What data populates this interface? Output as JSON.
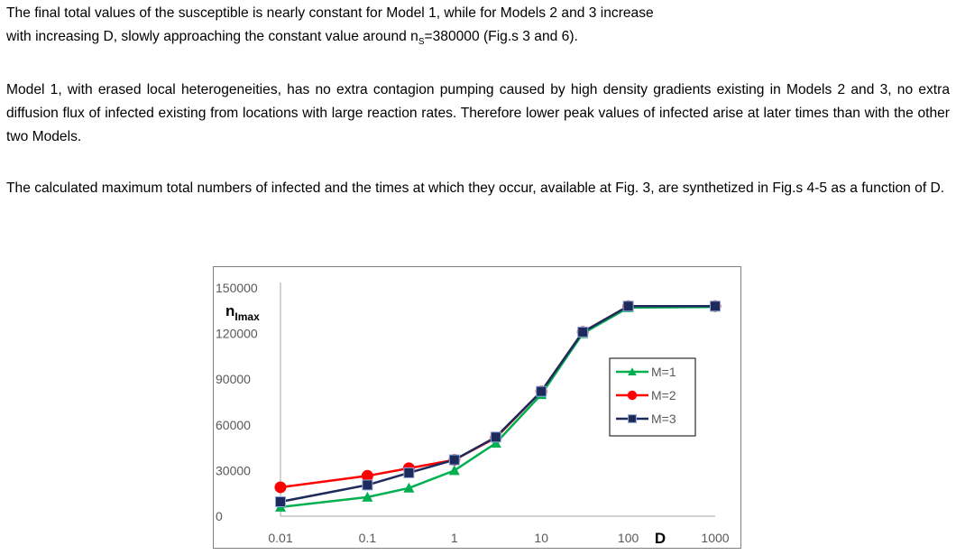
{
  "paragraphs": {
    "p1_line1": "The final total values of the susceptible is nearly constant for Model 1, while for Models 2 and 3 increase",
    "p1_line2_pre": "with increasing D, slowly approaching the constant value around n",
    "p1_sub": "S",
    "p1_line2_post": "=380000 (Fig.s 3 and 6).",
    "p2": "Model 1, with erased local heterogeneities, has no extra contagion pumping caused by high density gradients existing in Models 2 and 3, no extra diffusion flux of infected existing from locations with large reaction rates. Therefore lower peak values of infected arise at later times than with the other two Models.",
    "p3": "The calculated maximum total numbers of infected and the times at which they occur, available at Fig. 3, are synthetized in Fig.s 4-5 as a function of D."
  },
  "chart_data": {
    "type": "line",
    "ylabel_main": "n",
    "ylabel_sub": "Imax",
    "xlabel": "D",
    "x_scale": "log",
    "xlim": [
      0.01,
      1000
    ],
    "ylim": [
      0,
      150000
    ],
    "x_ticks": [
      0.01,
      0.1,
      1,
      10,
      100,
      1000
    ],
    "x_tick_labels": [
      "0.01",
      "0.1",
      "1",
      "10",
      "100",
      "1000"
    ],
    "y_ticks": [
      0,
      30000,
      60000,
      90000,
      120000,
      150000
    ],
    "y_tick_labels": [
      "0",
      "30000",
      "60000",
      "90000",
      "120000",
      "150000"
    ],
    "grid": false,
    "legend_position": "right",
    "series": [
      {
        "name": "M=1",
        "color": "#00b050",
        "marker": "triangle",
        "x": [
          0.01,
          0.1,
          0.3,
          1,
          3,
          10,
          30,
          100,
          1000
        ],
        "y": [
          6000,
          12500,
          18500,
          30000,
          48000,
          80000,
          120000,
          137000,
          137500
        ]
      },
      {
        "name": "M=2",
        "color": "#ff0000",
        "marker": "circle",
        "x": [
          0.01,
          0.1,
          0.3,
          1,
          3,
          10,
          30,
          100,
          1000
        ],
        "y": [
          19000,
          26500,
          31500,
          37000,
          51500,
          82000,
          121000,
          138000,
          138000
        ]
      },
      {
        "name": "M=3",
        "color": "#1f2a5c",
        "marker": "square",
        "x": [
          0.01,
          0.1,
          0.3,
          1,
          3,
          10,
          30,
          100,
          1000
        ],
        "y": [
          9500,
          20500,
          28500,
          37000,
          52000,
          82000,
          121000,
          138000,
          138000
        ]
      }
    ]
  }
}
